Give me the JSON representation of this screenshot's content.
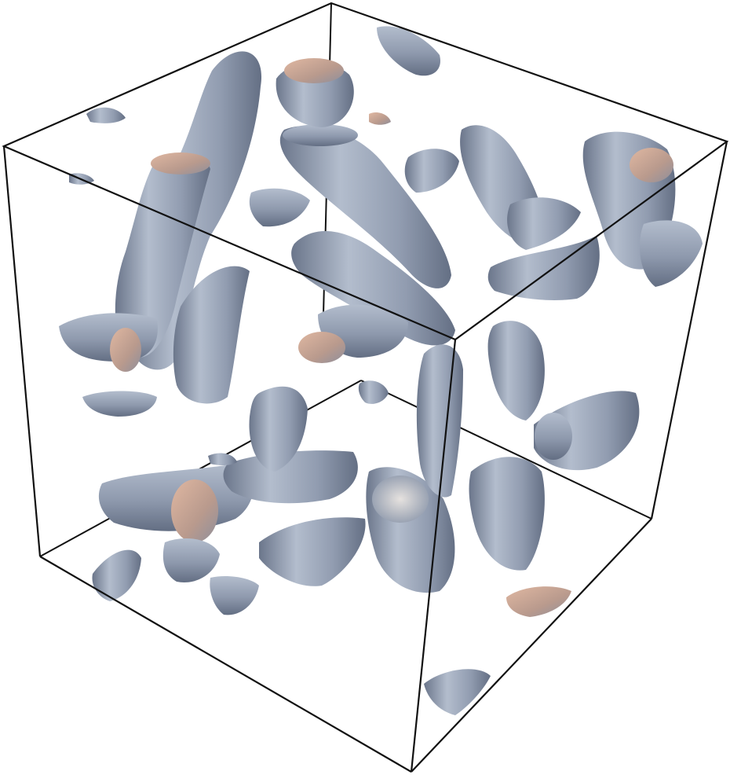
{
  "figure": {
    "colors": {
      "background": "#ffffff",
      "box_edge": "#111111",
      "surface_light": "#aab4c6",
      "surface_mid": "#8c97ab",
      "surface_dark": "#667186",
      "surface_warm": "#d8ac96"
    }
  }
}
